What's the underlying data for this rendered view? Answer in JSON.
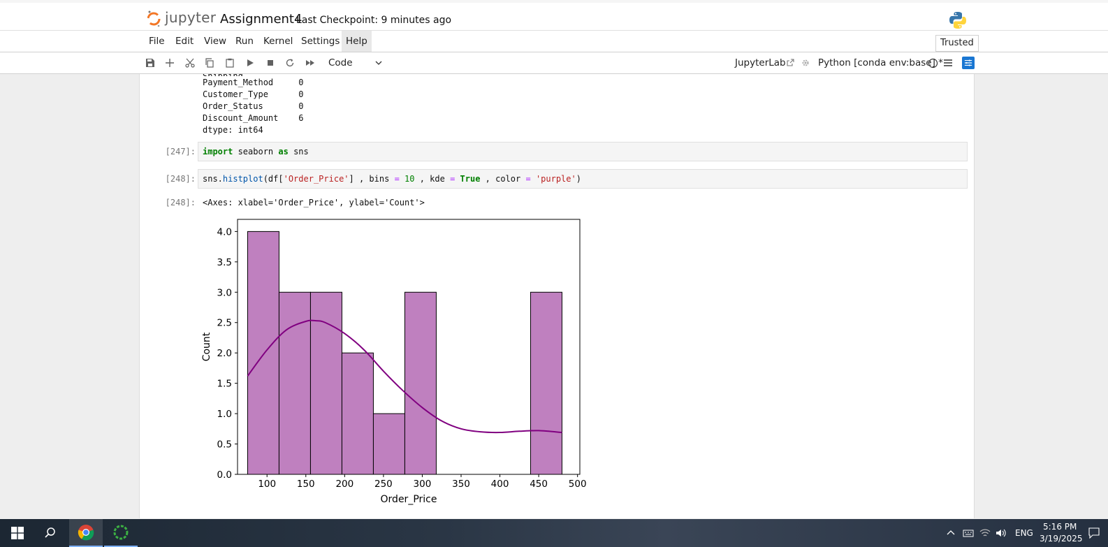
{
  "header": {
    "logo_text": "jupyter",
    "notebook_name": "Assignment4",
    "checkpoint": "Last Checkpoint: 9 minutes ago"
  },
  "menu": {
    "items": [
      "File",
      "Edit",
      "View",
      "Run",
      "Kernel",
      "Settings",
      "Help"
    ],
    "trusted": "Trusted"
  },
  "toolbar": {
    "cell_type": "Code",
    "jupyterlab_link": "JupyterLab",
    "kernel": "Python [conda env:base] *"
  },
  "output_top": {
    "lines": [
      "Payment_Method     0",
      "Customer_Type      0",
      "Order_Status       0",
      "Discount_Amount    6",
      "dtype: int64"
    ]
  },
  "cells": [
    {
      "prompt": "[247]:",
      "tokens": [
        {
          "t": "import",
          "c": "kw"
        },
        {
          "t": " seaborn ",
          "c": ""
        },
        {
          "t": "as",
          "c": "kw"
        },
        {
          "t": " sns",
          "c": ""
        }
      ]
    },
    {
      "prompt": "[248]:",
      "tokens": [
        {
          "t": "sns.",
          "c": ""
        },
        {
          "t": "histplot",
          "c": "fn"
        },
        {
          "t": "(df[",
          "c": ""
        },
        {
          "t": "'Order_Price'",
          "c": "str"
        },
        {
          "t": "] , bins ",
          "c": ""
        },
        {
          "t": "=",
          "c": "op"
        },
        {
          "t": " ",
          "c": ""
        },
        {
          "t": "10",
          "c": "num"
        },
        {
          "t": " , kde ",
          "c": ""
        },
        {
          "t": "=",
          "c": "op"
        },
        {
          "t": " ",
          "c": ""
        },
        {
          "t": "True",
          "c": "kw"
        },
        {
          "t": " , color ",
          "c": ""
        },
        {
          "t": "=",
          "c": "op"
        },
        {
          "t": " ",
          "c": ""
        },
        {
          "t": "'purple'",
          "c": "str"
        },
        {
          "t": ")",
          "c": ""
        }
      ]
    }
  ],
  "out_prompt": "[248]:",
  "out_text": "<Axes: xlabel='Order_Price', ylabel='Count'>",
  "chart_data": {
    "type": "bar",
    "xlabel": "Order_Price",
    "ylabel": "Count",
    "xlim": [
      62,
      503
    ],
    "ylim": [
      0,
      4.2
    ],
    "xticks": [
      100,
      150,
      200,
      250,
      300,
      350,
      400,
      450,
      500
    ],
    "yticks": [
      0.0,
      0.5,
      1.0,
      1.5,
      2.0,
      2.5,
      3.0,
      3.5,
      4.0
    ],
    "bin_edges": [
      75,
      115.5,
      156,
      196.5,
      237,
      277.5,
      318,
      358.5,
      399,
      439.5,
      480
    ],
    "values": [
      4,
      3,
      3,
      2,
      1,
      3,
      0,
      0,
      0,
      3
    ],
    "kde": {
      "x": [
        75,
        100,
        125,
        150,
        163,
        175,
        200,
        225,
        250,
        275,
        300,
        325,
        350,
        375,
        400,
        425,
        450,
        480
      ],
      "y": [
        1.62,
        2.05,
        2.38,
        2.52,
        2.53,
        2.5,
        2.32,
        2.05,
        1.7,
        1.38,
        1.1,
        0.88,
        0.75,
        0.7,
        0.69,
        0.71,
        0.72,
        0.69
      ]
    },
    "bar_color": "#bf80bf",
    "line_color": "#800080"
  },
  "taskbar": {
    "lang": "ENG",
    "time": "5:16 PM",
    "date": "3/19/2025"
  }
}
